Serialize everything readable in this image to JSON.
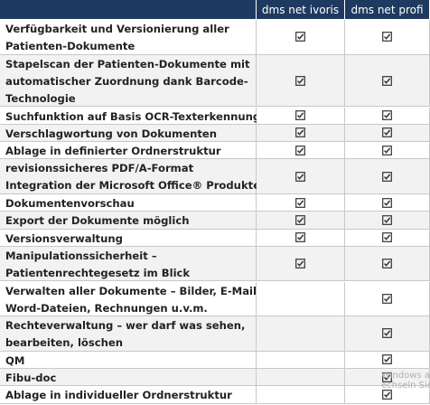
{
  "table": {
    "header": [
      "dms net ivoris",
      "dms net profi"
    ],
    "rows": [
      {
        "feature": [
          "Verfügbarkeit und Versionierung aller",
          "Patienten-Dokumente"
        ],
        "ivoris": true,
        "profi": true
      },
      {
        "feature": [
          "Stapelscan der Patienten-Dokumente mit",
          "automatischer Zuordnung dank Barcode-",
          "Technologie"
        ],
        "ivoris": true,
        "profi": true
      },
      {
        "feature": [
          "Suchfunktion auf Basis OCR-Texterkennung"
        ],
        "ivoris": true,
        "profi": true
      },
      {
        "feature": [
          "Verschlagwortung von Dokumenten"
        ],
        "ivoris": true,
        "profi": true
      },
      {
        "feature": [
          "Ablage in definierter Ordnerstruktur"
        ],
        "ivoris": true,
        "profi": true
      },
      {
        "feature": [
          "revisionssicheres PDF/A-Format",
          "Integration der Microsoft Office® Produkte"
        ],
        "ivoris": true,
        "profi": true
      },
      {
        "feature": [
          "Dokumentenvorschau"
        ],
        "ivoris": true,
        "profi": true
      },
      {
        "feature": [
          "Export der Dokumente möglich"
        ],
        "ivoris": true,
        "profi": true
      },
      {
        "feature": [
          "Versionsverwaltung"
        ],
        "ivoris": true,
        "profi": true
      },
      {
        "feature": [
          "Manipulationssicherheit –",
          "Patientenrechtegesetz im Blick"
        ],
        "ivoris": true,
        "profi": true
      },
      {
        "feature": [
          "Verwalten aller Dokumente – Bilder, E-Mails,",
          "Word-Dateien, Rechnungen u.v.m."
        ],
        "ivoris": false,
        "profi": true
      },
      {
        "feature": [
          "Rechteverwaltung – wer darf was sehen,",
          "bearbeiten, löschen"
        ],
        "ivoris": false,
        "profi": true
      },
      {
        "feature": [
          "QM"
        ],
        "ivoris": false,
        "profi": true
      },
      {
        "feature": [
          "Fibu-doc"
        ],
        "ivoris": false,
        "profi": true
      },
      {
        "feature": [
          "Ablage in individueller Ordnerstruktur"
        ],
        "ivoris": false,
        "profi": true
      }
    ]
  },
  "watermark": [
    "Windows a",
    "echseln Sie"
  ]
}
